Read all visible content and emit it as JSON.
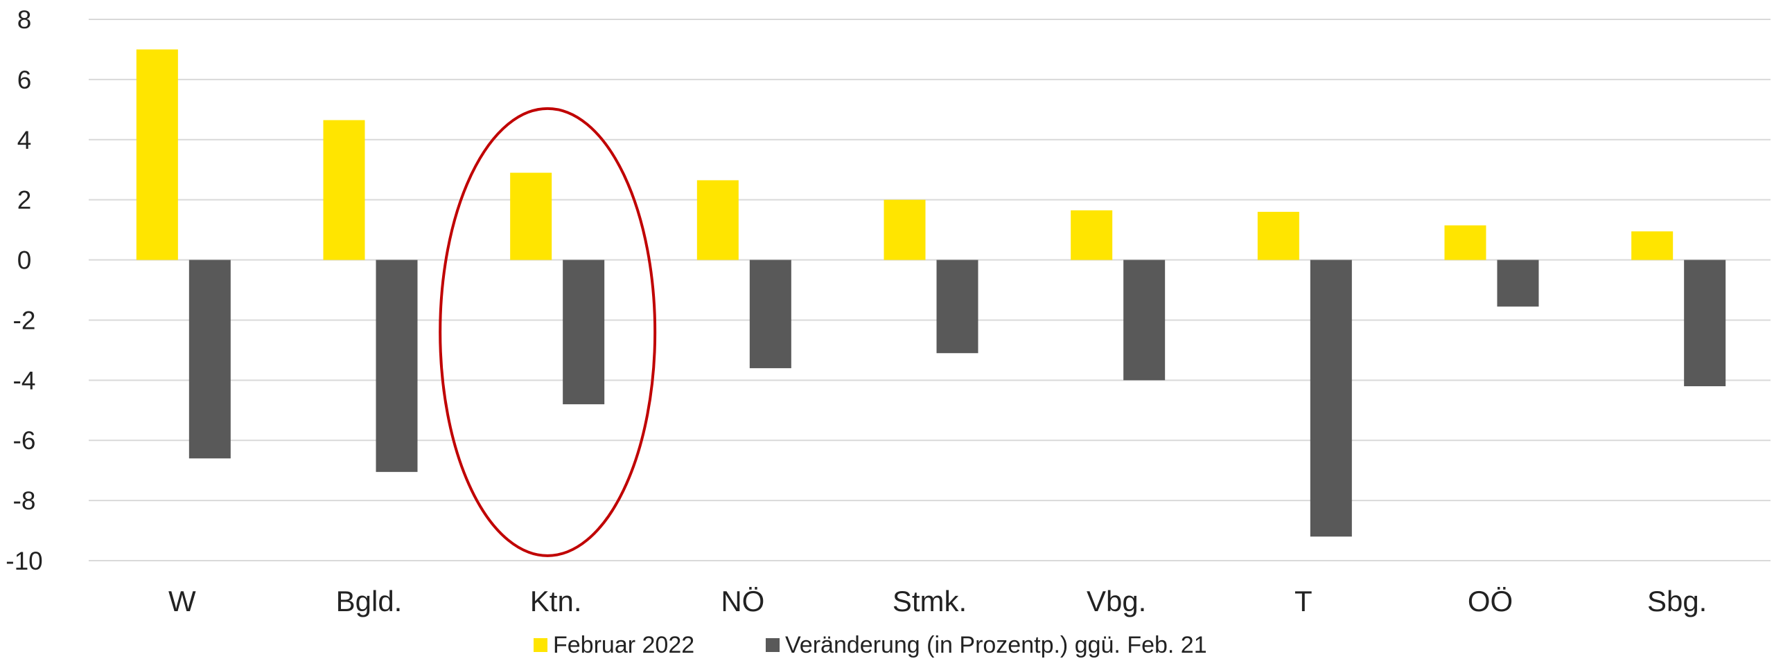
{
  "chart_data": {
    "type": "bar",
    "title": "",
    "xlabel": "",
    "ylabel": "",
    "categories": [
      "W",
      "Bgld.",
      "Ktn.",
      "NÖ",
      "Stmk.",
      "Vbg.",
      "T",
      "OÖ",
      "Sbg."
    ],
    "series": [
      {
        "name": "Februar 2022",
        "color": "#FFE500",
        "values": [
          7.0,
          4.65,
          2.9,
          2.65,
          2.0,
          1.65,
          1.6,
          1.15,
          0.95
        ]
      },
      {
        "name": "Veränderung (in Prozentp.) ggü. Feb. 21",
        "color": "#595959",
        "values": [
          -6.6,
          -7.05,
          -4.8,
          -3.6,
          -3.1,
          -4.0,
          -9.2,
          -1.55,
          -4.2
        ]
      }
    ],
    "ylim": [
      -10,
      8
    ],
    "yticks": [
      8,
      6,
      4,
      2,
      0,
      -2,
      -4,
      -6,
      -8,
      -10
    ],
    "grid": true,
    "legend_position": "bottom",
    "highlight": {
      "category": "Ktn.",
      "shape": "ellipse",
      "color": "#C00000"
    }
  }
}
